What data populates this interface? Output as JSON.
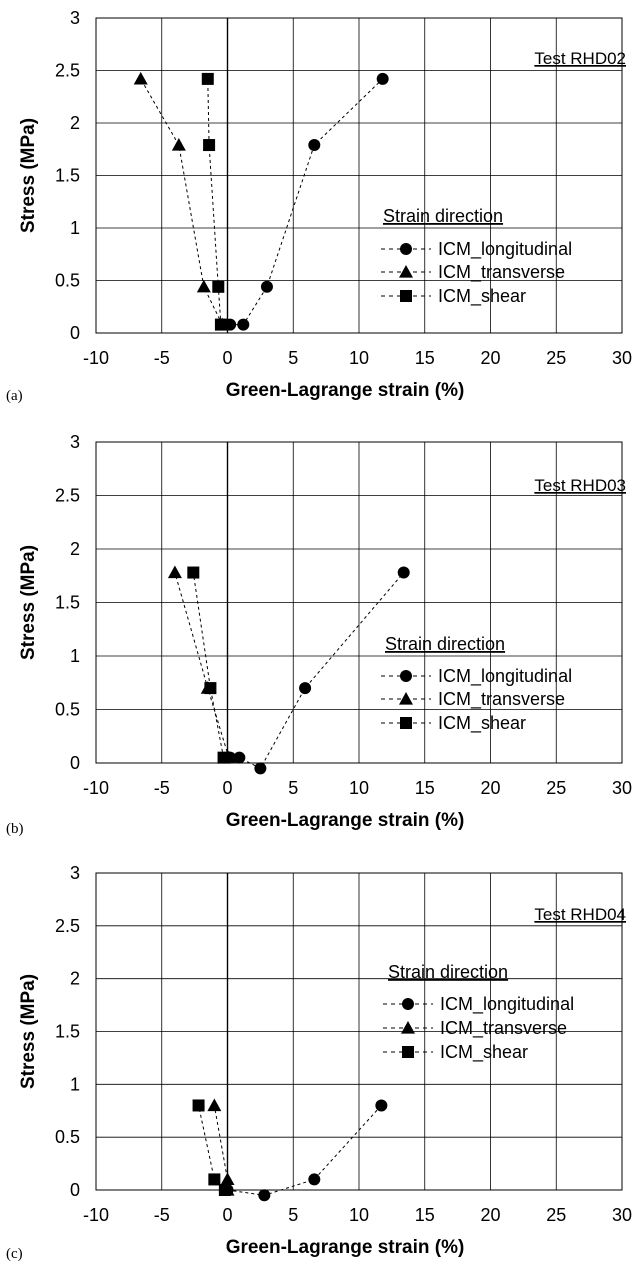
{
  "chart_data": [
    {
      "type": "line",
      "panel_label": "(a)",
      "annotation": "Test RHD02",
      "xlabel": "Green-Lagrange strain (%)",
      "ylabel": "Stress (MPa)",
      "xlim": [
        -10,
        30
      ],
      "ylim": [
        0,
        3
      ],
      "xticks": [
        -10,
        -5,
        0,
        5,
        10,
        15,
        20,
        25,
        30
      ],
      "yticks": [
        0,
        0.5,
        1,
        1.5,
        2,
        2.5,
        3
      ],
      "xtick_labels": [
        "-10",
        "-5",
        "0",
        "5",
        "10",
        "15",
        "20",
        "25",
        "30"
      ],
      "ytick_labels": [
        "0",
        "0.5",
        "1",
        "1.5",
        "2",
        "2.5",
        "3"
      ],
      "grid": true,
      "legend": {
        "title": "Strain direction",
        "position": "center-right"
      },
      "series": [
        {
          "name": "ICM_longitudinal",
          "marker": "circle",
          "x": [
            0.2,
            1.2,
            3.0,
            6.6,
            11.8
          ],
          "y": [
            0.08,
            0.08,
            0.44,
            1.79,
            2.42
          ]
        },
        {
          "name": "ICM_transverse",
          "marker": "triangle",
          "x": [
            -0.4,
            -1.8,
            -3.7,
            -6.6
          ],
          "y": [
            0.08,
            0.44,
            1.79,
            2.42
          ]
        },
        {
          "name": "ICM_shear",
          "marker": "square",
          "x": [
            -0.5,
            -0.7,
            -1.4,
            -1.5
          ],
          "y": [
            0.08,
            0.44,
            1.79,
            2.42
          ]
        }
      ]
    },
    {
      "type": "line",
      "panel_label": "(b)",
      "annotation": "Test RHD03",
      "xlabel": "Green-Lagrange strain (%)",
      "ylabel": "Stress (MPa)",
      "xlim": [
        -10,
        30
      ],
      "ylim": [
        0,
        3
      ],
      "xticks": [
        -10,
        -5,
        0,
        5,
        10,
        15,
        20,
        25,
        30
      ],
      "yticks": [
        0,
        0.5,
        1,
        1.5,
        2,
        2.5,
        3
      ],
      "xtick_labels": [
        "-10",
        "-5",
        "0",
        "5",
        "10",
        "15",
        "20",
        "25",
        "30"
      ],
      "ytick_labels": [
        "0",
        "0.5",
        "1",
        "1.5",
        "2",
        "2.5",
        "3"
      ],
      "grid": true,
      "legend": {
        "title": "Strain direction",
        "position": "center-right"
      },
      "series": [
        {
          "name": "ICM_longitudinal",
          "marker": "circle",
          "x": [
            0.2,
            0.9,
            2.5,
            5.9,
            13.4
          ],
          "y": [
            0.05,
            0.05,
            -0.05,
            0.7,
            1.78
          ]
        },
        {
          "name": "ICM_transverse",
          "marker": "triangle",
          "x": [
            0.1,
            -1.5,
            -4.0
          ],
          "y": [
            0.05,
            0.7,
            1.78
          ]
        },
        {
          "name": "ICM_shear",
          "marker": "square",
          "x": [
            -0.3,
            -1.3,
            -2.6
          ],
          "y": [
            0.05,
            0.7,
            1.78
          ]
        }
      ]
    },
    {
      "type": "line",
      "panel_label": "(c)",
      "annotation": "Test RHD04",
      "xlabel": "Green-Lagrange strain (%)",
      "ylabel": "Stress (MPa)",
      "xlim": [
        -10,
        30
      ],
      "ylim": [
        0,
        3
      ],
      "xticks": [
        -10,
        -5,
        0,
        5,
        10,
        15,
        20,
        25,
        30
      ],
      "yticks": [
        0,
        0.5,
        1,
        1.5,
        2,
        2.5,
        3
      ],
      "xtick_labels": [
        "-10",
        "-5",
        "0",
        "5",
        "10",
        "15",
        "20",
        "25",
        "30"
      ],
      "ytick_labels": [
        "0",
        "0.5",
        "1",
        "1.5",
        "2",
        "2.5",
        "3"
      ],
      "grid": true,
      "legend": {
        "title": "Strain direction",
        "position": "top-right"
      },
      "series": [
        {
          "name": "ICM_longitudinal",
          "marker": "circle",
          "x": [
            0.0,
            2.8,
            6.6,
            11.7
          ],
          "y": [
            0.0,
            -0.05,
            0.1,
            0.8
          ]
        },
        {
          "name": "ICM_transverse",
          "marker": "triangle",
          "x": [
            0.0,
            0.0,
            -1.0
          ],
          "y": [
            0.0,
            0.1,
            0.8
          ]
        },
        {
          "name": "ICM_shear",
          "marker": "square",
          "x": [
            -0.2,
            -1.0,
            -2.2
          ],
          "y": [
            0.0,
            0.1,
            0.8
          ]
        }
      ]
    }
  ]
}
